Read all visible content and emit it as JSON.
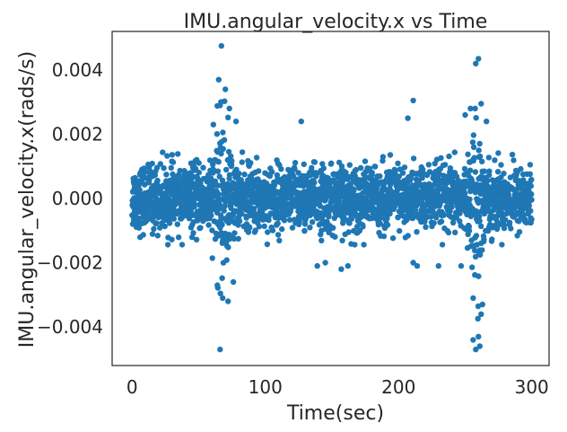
{
  "chart_data": {
    "type": "scatter",
    "title": "IMU.angular_velocity.x vs Time",
    "xlabel": "Time(sec)",
    "ylabel": "IMU.angular_velocity.x(rads/s)",
    "xlim": [
      -15,
      313
    ],
    "ylim": [
      -0.0052,
      0.0052
    ],
    "xticks": [
      0,
      100,
      200,
      300
    ],
    "xtick_labels": [
      "0",
      "100",
      "200",
      "300"
    ],
    "yticks": [
      -0.004,
      -0.002,
      0.0,
      0.002,
      0.004
    ],
    "ytick_labels": [
      "−0.004",
      "−0.002",
      "0.000",
      "0.002",
      "0.004"
    ],
    "grid": false,
    "marker_color": "#1f77b4",
    "x_range": [
      0,
      300
    ],
    "noise_spread": 0.0005,
    "points": [
      [
        67,
        0.00475
      ],
      [
        66,
        -0.0047
      ],
      [
        260,
        0.00435
      ],
      [
        258,
        0.0042
      ],
      [
        65,
        0.0037
      ],
      [
        70,
        0.0034
      ],
      [
        211,
        0.00305
      ],
      [
        262,
        0.00295
      ],
      [
        127,
        0.0024
      ],
      [
        68,
        -0.0031
      ],
      [
        72,
        -0.0032
      ],
      [
        76,
        -0.0026
      ],
      [
        64,
        -0.0027
      ],
      [
        258,
        -0.0047
      ],
      [
        256,
        -0.0044
      ],
      [
        261,
        -0.0046
      ],
      [
        260,
        -0.0043
      ],
      [
        262,
        -0.0036
      ],
      [
        263,
        -0.0033
      ],
      [
        256,
        -0.0031
      ],
      [
        139,
        -0.0021
      ],
      [
        145,
        -0.002
      ],
      [
        157,
        -0.0022
      ],
      [
        162,
        -0.0021
      ],
      [
        211,
        -0.002
      ],
      [
        214,
        -0.0021
      ],
      [
        230,
        -0.0021
      ],
      [
        247,
        -0.0021
      ],
      [
        250,
        0.0026
      ],
      [
        254,
        0.0028
      ],
      [
        207,
        0.0025
      ],
      [
        66,
        0.0029
      ],
      [
        73,
        0.0028
      ],
      [
        61,
        0.0023
      ],
      [
        78,
        0.0024
      ],
      [
        266,
        0.0024
      ]
    ]
  }
}
